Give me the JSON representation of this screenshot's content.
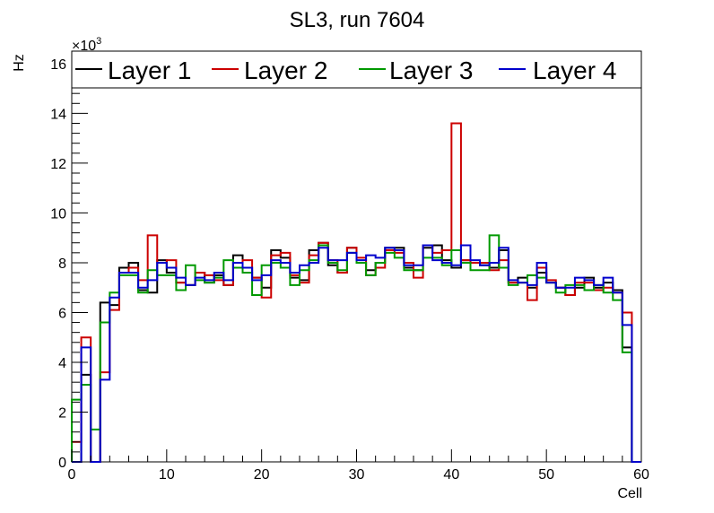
{
  "chart_data": {
    "type": "step",
    "title": "SL3, run 7604",
    "xlabel": "Cell",
    "ylabel": "Hz",
    "y_multiplier": "×10",
    "y_multiplier_exp": "3",
    "xlim": [
      0,
      60
    ],
    "ylim": [
      0,
      16.5
    ],
    "x_ticks": [
      "0",
      "10",
      "20",
      "30",
      "40",
      "50",
      "60"
    ],
    "y_ticks": [
      "0",
      "2",
      "4",
      "6",
      "8",
      "10",
      "12",
      "14",
      "16"
    ],
    "legend_position": "top",
    "grid": false,
    "bins": 60,
    "series": [
      {
        "name": "Layer 1",
        "color": "#000000",
        "values": [
          0,
          3.5,
          0,
          6.4,
          6.3,
          7.8,
          8.0,
          6.9,
          6.8,
          8.1,
          7.6,
          7.2,
          7.1,
          7.6,
          7.2,
          7.5,
          7.1,
          8.3,
          7.8,
          7.4,
          7.0,
          8.5,
          8.2,
          7.4,
          7.3,
          8.5,
          8.8,
          7.9,
          7.6,
          8.6,
          8.0,
          7.7,
          8.0,
          8.6,
          8.6,
          7.8,
          7.7,
          8.6,
          8.7,
          8.1,
          7.8,
          8.1,
          8.0,
          7.9,
          7.8,
          8.5,
          7.2,
          7.4,
          7.0,
          7.6,
          7.2,
          7.0,
          6.7,
          7.0,
          7.4,
          7.0,
          7.2,
          6.9,
          4.6,
          0
        ]
      },
      {
        "name": "Layer 2",
        "color": "#cc0000",
        "values": [
          0.8,
          5.0,
          0,
          3.6,
          6.1,
          7.6,
          7.8,
          7.3,
          9.1,
          8.0,
          8.1,
          7.2,
          7.1,
          7.6,
          7.5,
          7.3,
          7.1,
          8.0,
          8.1,
          7.4,
          6.6,
          8.3,
          8.4,
          7.5,
          7.2,
          8.3,
          8.8,
          8.1,
          7.6,
          8.6,
          8.2,
          7.5,
          7.8,
          8.5,
          8.4,
          8.0,
          7.4,
          8.7,
          8.4,
          8.5,
          13.6,
          8.1,
          8.0,
          8.0,
          7.7,
          8.1,
          7.2,
          7.2,
          6.5,
          7.8,
          7.3,
          7.0,
          6.7,
          7.2,
          7.2,
          6.9,
          7.0,
          6.8,
          6.0,
          0
        ]
      },
      {
        "name": "Layer 3",
        "color": "#009900",
        "values": [
          2.5,
          3.1,
          1.3,
          5.6,
          6.8,
          7.5,
          7.5,
          6.8,
          7.7,
          7.5,
          7.5,
          6.9,
          7.9,
          7.3,
          7.2,
          7.4,
          8.1,
          7.8,
          7.6,
          6.7,
          7.9,
          8.0,
          7.8,
          7.1,
          7.7,
          8.1,
          8.7,
          8.0,
          7.7,
          8.4,
          8.0,
          7.5,
          8.0,
          8.4,
          8.2,
          7.7,
          7.7,
          8.2,
          8.2,
          7.9,
          8.5,
          8.0,
          7.7,
          7.7,
          9.1,
          7.8,
          7.1,
          7.2,
          7.5,
          7.4,
          7.2,
          6.8,
          7.1,
          7.1,
          6.9,
          7.1,
          6.8,
          6.5,
          4.4,
          0
        ]
      },
      {
        "name": "Layer 4",
        "color": "#0000cc",
        "values": [
          0,
          4.6,
          0,
          3.3,
          6.6,
          7.6,
          7.6,
          7.0,
          7.3,
          8.0,
          7.8,
          7.4,
          7.1,
          7.4,
          7.3,
          7.6,
          7.3,
          8.0,
          7.8,
          7.3,
          7.5,
          8.1,
          8.0,
          7.6,
          7.9,
          8.0,
          8.6,
          8.1,
          8.1,
          8.4,
          8.1,
          8.3,
          8.2,
          8.6,
          8.5,
          7.9,
          7.9,
          8.7,
          8.1,
          8.0,
          7.9,
          8.7,
          8.1,
          7.9,
          8.0,
          8.6,
          7.3,
          7.2,
          7.1,
          8.0,
          7.2,
          7.0,
          7.0,
          7.4,
          7.3,
          7.1,
          7.4,
          6.8,
          5.5,
          0
        ]
      }
    ]
  }
}
